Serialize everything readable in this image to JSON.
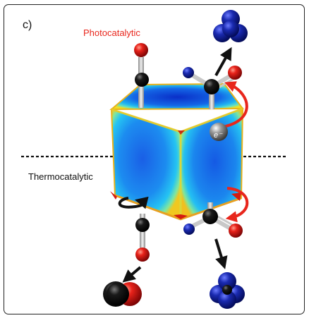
{
  "panel_label": "c)",
  "labels": {
    "photocatalytic": "Photocatalytic",
    "thermocatalytic": "Thermocatalytic"
  },
  "electron": "e⁻",
  "colors": {
    "photocatalytic_label": "#e8261c",
    "activation_arrow": "#e8261c",
    "rotation_arrow": "#111111",
    "carbon_atom": "#111111",
    "oxygen_atom": "#e11f1f",
    "hydrogen_atom": "#1a2aa8",
    "cube_core": "#1e70e8",
    "cube_edge": "#f4e21a"
  }
}
